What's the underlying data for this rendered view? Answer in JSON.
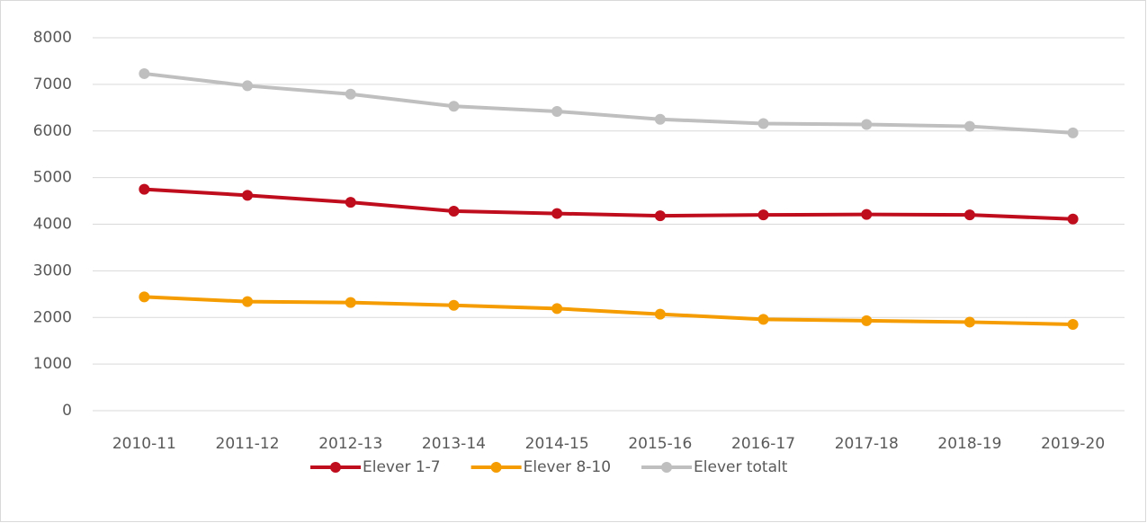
{
  "chart_data": {
    "type": "line",
    "categories": [
      "2010-11",
      "2011-12",
      "2012-13",
      "2013-14",
      "2014-15",
      "2015-16",
      "2016-17",
      "2017-18",
      "2018-19",
      "2019-20"
    ],
    "series": [
      {
        "name": "Elever 1-7",
        "color": "#c00d1e",
        "values": [
          4750,
          4620,
          4470,
          4280,
          4230,
          4180,
          4200,
          4210,
          4200,
          4110
        ]
      },
      {
        "name": "Elever 8-10",
        "color": "#f59c00",
        "values": [
          2440,
          2340,
          2320,
          2260,
          2190,
          2070,
          1960,
          1930,
          1900,
          1850
        ]
      },
      {
        "name": "Elever totalt",
        "color": "#bfbfbf",
        "values": [
          7230,
          6970,
          6790,
          6530,
          6420,
          6250,
          6160,
          6140,
          6100,
          5960
        ]
      }
    ],
    "ylim": [
      0,
      8000
    ],
    "yticks": [
      0,
      1000,
      2000,
      3000,
      4000,
      5000,
      6000,
      7000,
      8000
    ],
    "grid": true,
    "legend": "bottom"
  }
}
